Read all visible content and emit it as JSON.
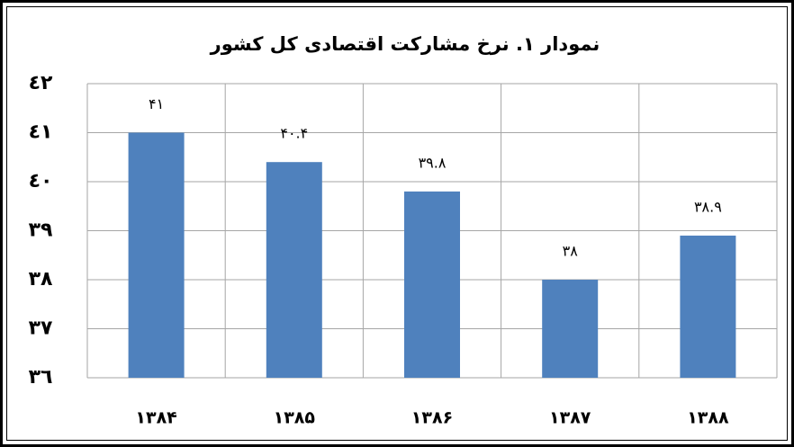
{
  "chart_data": {
    "type": "bar",
    "title": "نمودار ۱. نرخ مشارکت اقتصادی کل کشور",
    "categories": [
      "۱۳۸۴",
      "۱۳۸۵",
      "۱۳۸۶",
      "۱۳۸۷",
      "۱۳۸۸"
    ],
    "values": [
      41,
      40.4,
      39.8,
      38,
      38.9
    ],
    "value_labels": [
      "۴۱",
      "۴۰.۴",
      "۳۹.۸",
      "۳۸",
      "۳۸.۹"
    ],
    "color": "#4f81bd",
    "ylim": [
      36,
      42
    ],
    "yticks": [
      {
        "value": 36,
        "label": "٣٦"
      },
      {
        "value": 37,
        "label": "٣٧"
      },
      {
        "value": 38,
        "label": "٣٨"
      },
      {
        "value": 39,
        "label": "٣٩"
      },
      {
        "value": 40,
        "label": "٤٠"
      },
      {
        "value": 41,
        "label": "٤١"
      },
      {
        "value": 42,
        "label": "٤٢"
      }
    ],
    "grid": true
  }
}
